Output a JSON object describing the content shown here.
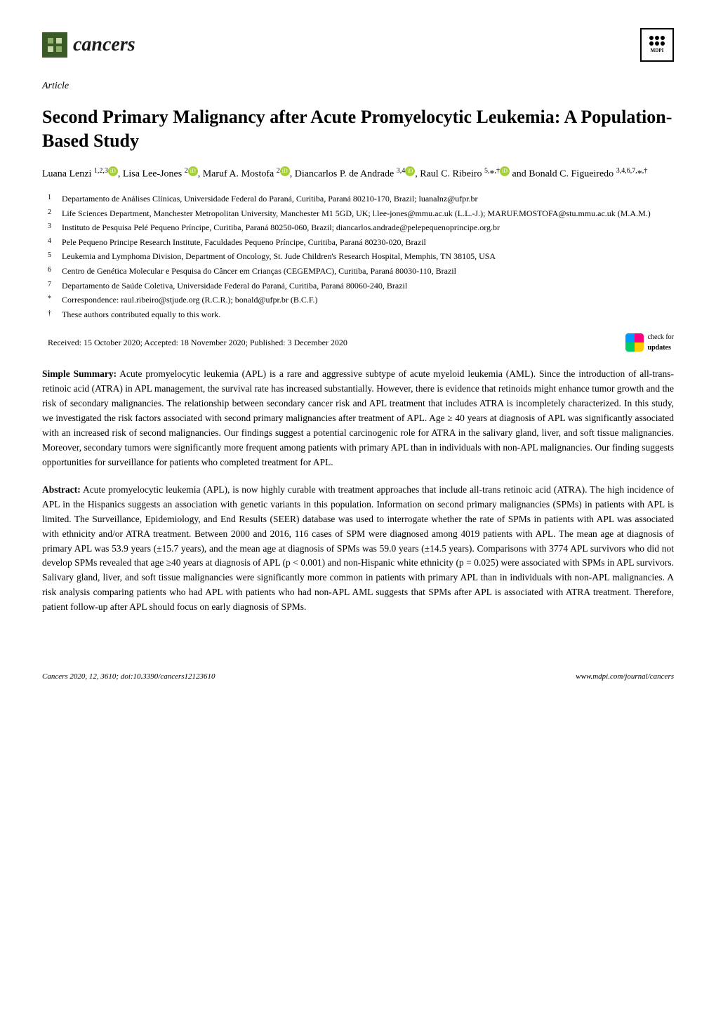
{
  "header": {
    "journal_name": "cancers",
    "publisher": "MDPI"
  },
  "article_type": "Article",
  "title": "Second Primary Malignancy after Acute Promyelocytic Leukemia: A Population-Based Study",
  "authors_html": "Luana Lenzi <sup>1,2,3</sup><span class='orcid'>iD</span>, Lisa Lee-Jones <sup>2</sup><span class='orcid'>iD</span>, Maruf A. Mostofa <sup>2</sup><span class='orcid'>iD</span>, Diancarlos P. de Andrade <sup>3,4</sup><span class='orcid'>iD</span>, Raul C. Ribeiro <sup>5,</sup>*<sup>,†</sup><span class='orcid'>iD</span> and Bonald C. Figueiredo <sup>3,4,6,7,</sup>*<sup>,†</sup>",
  "affiliations": [
    {
      "num": "1",
      "text": "Departamento de Análises Clínicas, Universidade Federal do Paraná, Curitiba, Paraná 80210-170, Brazil; luanalnz@ufpr.br"
    },
    {
      "num": "2",
      "text": "Life Sciences Department, Manchester Metropolitan University, Manchester M1 5GD, UK; l.lee-jones@mmu.ac.uk (L.L.-J.); MARUF.MOSTOFA@stu.mmu.ac.uk (M.A.M.)"
    },
    {
      "num": "3",
      "text": "Instituto de Pesquisa Pelé Pequeno Príncipe, Curitiba, Paraná 80250-060, Brazil; diancarlos.andrade@pelepequenoprincipe.org.br"
    },
    {
      "num": "4",
      "text": "Pele Pequeno Principe Research Institute, Faculdades Pequeno Príncipe, Curitiba, Paraná 80230-020, Brazil"
    },
    {
      "num": "5",
      "text": "Leukemia and Lymphoma Division, Department of Oncology, St. Jude Children's Research Hospital, Memphis, TN 38105, USA"
    },
    {
      "num": "6",
      "text": "Centro de Genética Molecular e Pesquisa do Câncer em Crianças (CEGEMPAC), Curitiba, Paraná 80030-110, Brazil"
    },
    {
      "num": "7",
      "text": "Departamento de Saúde Coletiva, Universidade Federal do Paraná, Curitiba, Paraná 80060-240, Brazil"
    },
    {
      "num": "*",
      "text": "Correspondence: raul.ribeiro@stjude.org (R.C.R.); bonald@ufpr.br (B.C.F.)"
    },
    {
      "num": "†",
      "text": "These authors contributed equally to this work."
    }
  ],
  "dates": "Received: 15 October 2020; Accepted: 18 November 2020; Published: 3 December 2020",
  "check_updates_label": "check for",
  "check_updates_label2": "updates",
  "simple_summary_label": "Simple Summary:",
  "simple_summary": " Acute promyelocytic leukemia (APL) is a rare and aggressive subtype of acute myeloid leukemia (AML). Since the introduction of all-trans-retinoic acid (ATRA) in APL management, the survival rate has increased substantially. However, there is evidence that retinoids might enhance tumor growth and the risk of secondary malignancies. The relationship between secondary cancer risk and APL treatment that includes ATRA is incompletely characterized. In this study, we investigated the risk factors associated with second primary malignancies after treatment of APL. Age ≥ 40 years at diagnosis of APL was significantly associated with an increased risk of second malignancies. Our findings suggest a potential carcinogenic role for ATRA in the salivary gland, liver, and soft tissue malignancies. Moreover, secondary tumors were significantly more frequent among patients with primary APL than in individuals with non-APL malignancies. Our finding suggests opportunities for surveillance for patients who completed treatment for APL.",
  "abstract_label": "Abstract:",
  "abstract": " Acute promyelocytic leukemia (APL), is now highly curable with treatment approaches that include all-trans retinoic acid (ATRA). The high incidence of APL in the Hispanics suggests an association with genetic variants in this population. Information on second primary malignancies (SPMs) in patients with APL is limited. The Surveillance, Epidemiology, and End Results (SEER) database was used to interrogate whether the rate of SPMs in patients with APL was associated with ethnicity and/or ATRA treatment. Between 2000 and 2016, 116 cases of SPM were diagnosed among 4019 patients with APL. The mean age at diagnosis of primary APL was 53.9 years (±15.7 years), and the mean age at diagnosis of SPMs was 59.0 years (±14.5 years). Comparisons with 3774 APL survivors who did not develop SPMs revealed that age ≥40 years at diagnosis of APL (p < 0.001) and non-Hispanic white ethnicity (p = 0.025) were associated with SPMs in APL survivors. Salivary gland, liver, and soft tissue malignancies were significantly more common in patients with primary APL than in individuals with non-APL malignancies. A risk analysis comparing patients who had APL with patients who had non-APL AML suggests that SPMs after APL is associated with ATRA treatment. Therefore, patient follow-up after APL should focus on early diagnosis of SPMs.",
  "footer": {
    "left": "Cancers 2020, 12, 3610; doi:10.3390/cancers12123610",
    "right": "www.mdpi.com/journal/cancers"
  },
  "colors": {
    "logo_bg": "#3a5a28",
    "orcid_bg": "#a6ce39",
    "text": "#000000",
    "background": "#ffffff"
  },
  "typography": {
    "body_font": "Palatino Linotype",
    "title_size_pt": 26,
    "body_size_pt": 13.5,
    "affil_size_pt": 12,
    "footer_size_pt": 11
  }
}
